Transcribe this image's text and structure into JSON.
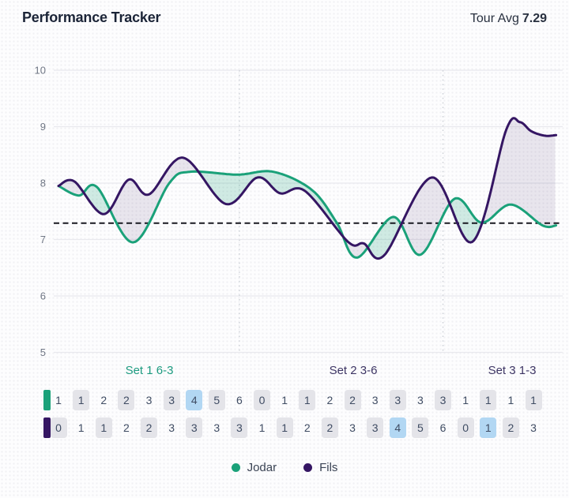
{
  "header": {
    "title": "Performance Tracker",
    "tour_avg_label": "Tour Avg",
    "tour_avg_value": "7.29"
  },
  "sets": [
    {
      "label": "Set 1 6-3",
      "color": "#1d9b80"
    },
    {
      "label": "Set 2 3-6",
      "color": "#3d3564"
    },
    {
      "label": "Set 3 1-3",
      "color": "#3d3564"
    }
  ],
  "legend": [
    {
      "name": "Jodar",
      "color": "#1aa179"
    },
    {
      "name": "Fils",
      "color": "#351663"
    }
  ],
  "chart_data": {
    "type": "line",
    "title": "Performance Tracker",
    "subtitle": "",
    "xlabel": "",
    "ylabel": "",
    "ylim": [
      5,
      10
    ],
    "y_ticks": [
      10,
      9,
      8,
      7,
      6,
      5
    ],
    "grid": "horizontal",
    "legend_position": "bottom",
    "tour_avg_reference_line": 7.29,
    "total_games": 22,
    "set_end_games": [
      9,
      18
    ],
    "series": [
      {
        "name": "Jodar",
        "color": "#1aa179",
        "fill_when_above": "rgba(26,161,121,0.20)",
        "points": [
          [
            1,
            7.95
          ],
          [
            1.9,
            7.78
          ],
          [
            2.7,
            7.93
          ],
          [
            4.3,
            6.95
          ],
          [
            5.9,
            8.0
          ],
          [
            6.8,
            8.2
          ],
          [
            8.9,
            8.15
          ],
          [
            10.5,
            8.2
          ],
          [
            12.2,
            7.88
          ],
          [
            13.3,
            7.3
          ],
          [
            14.2,
            6.68
          ],
          [
            15.8,
            7.4
          ],
          [
            17.0,
            6.73
          ],
          [
            18.5,
            7.72
          ],
          [
            19.7,
            7.3
          ],
          [
            21.0,
            7.62
          ],
          [
            22.4,
            7.25
          ],
          [
            23.0,
            7.25
          ]
        ]
      },
      {
        "name": "Fils",
        "color": "#351663",
        "fill_when_above": "rgba(51,23,88,0.10)",
        "points": [
          [
            1,
            7.95
          ],
          [
            1.7,
            8.03
          ],
          [
            3.0,
            7.45
          ],
          [
            4.1,
            8.06
          ],
          [
            5.0,
            7.8
          ],
          [
            6.5,
            8.45
          ],
          [
            8.4,
            7.63
          ],
          [
            9.8,
            8.1
          ],
          [
            10.8,
            7.82
          ],
          [
            11.9,
            7.86
          ],
          [
            13.8,
            6.96
          ],
          [
            14.5,
            6.93
          ],
          [
            15.4,
            6.72
          ],
          [
            17.5,
            8.1
          ],
          [
            19.3,
            6.96
          ],
          [
            20.8,
            8.95
          ],
          [
            21.4,
            9.08
          ],
          [
            21.9,
            8.92
          ],
          [
            22.5,
            8.84
          ],
          [
            23.0,
            8.85
          ]
        ]
      }
    ]
  },
  "score_grid": {
    "colors": {
      "plain": "transparent",
      "gray": "#e4e4e9",
      "blue": "#b2d7f3"
    },
    "rows": [
      {
        "player": "Jodar",
        "indicator_color": "#1aa179",
        "values": [
          1,
          1,
          2,
          2,
          3,
          3,
          4,
          5,
          6,
          0,
          1,
          1,
          2,
          2,
          3,
          3,
          3,
          3,
          1,
          1,
          1,
          1
        ],
        "cell_styles": [
          "plain",
          "gray",
          "plain",
          "gray",
          "plain",
          "gray",
          "blue",
          "gray",
          "plain",
          "gray",
          "plain",
          "gray",
          "plain",
          "gray",
          "plain",
          "gray",
          "plain",
          "gray",
          "plain",
          "gray",
          "plain",
          "gray"
        ]
      },
      {
        "player": "Fils",
        "indicator_color": "#351663",
        "values": [
          0,
          1,
          1,
          2,
          2,
          3,
          3,
          3,
          3,
          1,
          1,
          2,
          2,
          3,
          3,
          4,
          5,
          6,
          0,
          1,
          2,
          3
        ],
        "cell_styles": [
          "gray",
          "plain",
          "gray",
          "plain",
          "gray",
          "plain",
          "gray",
          "plain",
          "gray",
          "plain",
          "gray",
          "plain",
          "gray",
          "plain",
          "gray",
          "blue",
          "gray",
          "plain",
          "gray",
          "blue",
          "gray",
          "plain"
        ]
      }
    ]
  }
}
